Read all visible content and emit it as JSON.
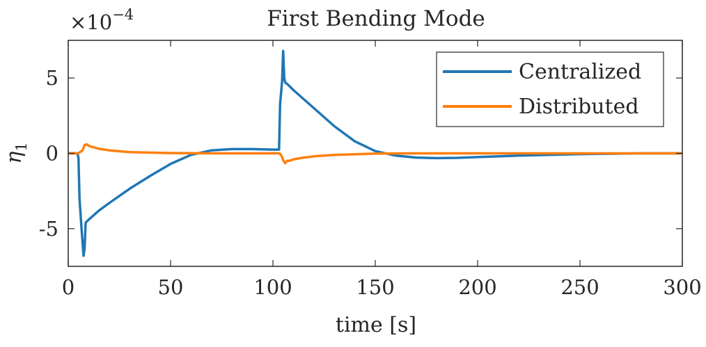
{
  "chart_data": {
    "type": "line",
    "title": "First Bending Mode",
    "xlabel": "time [s]",
    "ylabel": "η",
    "ylabel_subscript": "1",
    "y_exponent_label": "×10",
    "y_exponent_power": "−4",
    "xlim": [
      0,
      300
    ],
    "ylim": [
      -7.5,
      7.5
    ],
    "xticks": [
      0,
      50,
      100,
      150,
      200,
      250,
      300
    ],
    "xtick_labels": [
      "0",
      "50",
      "100",
      "150",
      "200",
      "250",
      "300"
    ],
    "yticks": [
      -5,
      0,
      5
    ],
    "ytick_labels": [
      "-5",
      "0",
      "5"
    ],
    "grid": false,
    "legend_position": "top-right",
    "series": [
      {
        "name": "Centralized",
        "color": "#1f77b4",
        "x": [
          0,
          4.5,
          5,
          5.5,
          6.5,
          7.5,
          8,
          8.5,
          10,
          15,
          20,
          30,
          40,
          50,
          60,
          70,
          80,
          90,
          100,
          103,
          103.5,
          104.5,
          105,
          105.5,
          106,
          107,
          110,
          120,
          130,
          140,
          150,
          160,
          170,
          180,
          190,
          200,
          220,
          250,
          280,
          300
        ],
        "y": [
          0,
          0,
          -0.3,
          -3.0,
          -5.0,
          -6.8,
          -6.3,
          -4.6,
          -4.4,
          -3.8,
          -3.3,
          -2.35,
          -1.5,
          -0.7,
          -0.1,
          0.2,
          0.28,
          0.28,
          0.25,
          0.25,
          3.3,
          4.8,
          6.8,
          5.0,
          4.7,
          4.6,
          4.2,
          3.0,
          1.8,
          0.8,
          0.15,
          -0.15,
          -0.28,
          -0.32,
          -0.3,
          -0.25,
          -0.15,
          -0.05,
          0,
          0
        ]
      },
      {
        "name": "Distributed",
        "color": "#ff7f0e",
        "x": [
          0,
          5,
          6,
          7,
          8,
          9,
          10,
          15,
          20,
          30,
          50,
          70,
          100,
          103,
          104,
          105,
          106,
          107,
          108,
          110,
          115,
          120,
          130,
          150,
          170,
          200,
          250,
          300
        ],
        "y": [
          0,
          0,
          0.1,
          0.2,
          0.55,
          0.6,
          0.5,
          0.3,
          0.2,
          0.08,
          0.02,
          0,
          0,
          0,
          -0.1,
          -0.45,
          -0.65,
          -0.5,
          -0.5,
          -0.4,
          -0.28,
          -0.2,
          -0.1,
          -0.02,
          0,
          0,
          0,
          0
        ]
      }
    ]
  }
}
